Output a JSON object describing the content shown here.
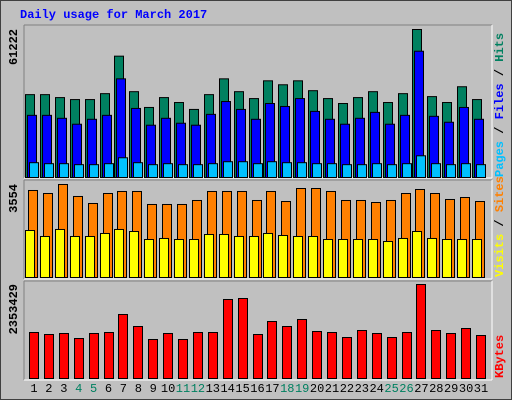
{
  "chart_data": [
    {
      "type": "bar",
      "title": "Daily usage for March 2017",
      "ylim": [
        0,
        61222
      ],
      "yticks": [
        61222
      ],
      "series": [
        {
          "name": "Hits",
          "color": "#008060",
          "values": [
            34281,
            34281,
            33056,
            32240,
            32240,
            34689,
            50196,
            35505,
            28975,
            33056,
            31016,
            28159,
            34281,
            40815,
            35505,
            32648,
            39995,
            38362,
            39995,
            35913,
            32648,
            30608,
            33056,
            35505,
            31016,
            34689,
            61222,
            33464,
            31016,
            37546,
            32240
          ]
        },
        {
          "name": "Files",
          "color": "#0000ff",
          "values": [
            25710,
            25710,
            24486,
            22037,
            24078,
            25710,
            40810,
            28567,
            21629,
            24486,
            22446,
            21629,
            26118,
            31424,
            28159,
            24078,
            30608,
            29383,
            32648,
            27343,
            24078,
            22037,
            24486,
            26935,
            22037,
            25710,
            52237,
            25302,
            22854,
            28975,
            24078
          ]
        },
        {
          "name": "Pages",
          "color": "#00c0ff",
          "values": [
            6122,
            5714,
            5714,
            5306,
            5306,
            5714,
            8162,
            6122,
            5306,
            5714,
            5306,
            5306,
            5714,
            6530,
            6530,
            5714,
            6530,
            6122,
            6122,
            5714,
            5714,
            5306,
            5306,
            5714,
            5306,
            5714,
            8978,
            5714,
            5306,
            5714,
            5306
          ]
        }
      ]
    },
    {
      "type": "bar",
      "ylim": [
        0,
        3554
      ],
      "yticks": [
        3554
      ],
      "series": [
        {
          "name": "Sites",
          "color": "#ff8000",
          "values": [
            3325,
            3210,
            3554,
            3096,
            2828,
            3210,
            3287,
            3287,
            2790,
            2790,
            2790,
            2943,
            3287,
            3287,
            3287,
            2943,
            3287,
            2904,
            3401,
            3401,
            3287,
            2943,
            2943,
            2866,
            2943,
            3210,
            3363,
            3210,
            2981,
            3057,
            2904
          ]
        },
        {
          "name": "Visits",
          "color": "#ffff00",
          "values": [
            1796,
            1567,
            1835,
            1567,
            1567,
            1682,
            1835,
            1758,
            1452,
            1491,
            1452,
            1452,
            1643,
            1643,
            1567,
            1567,
            1682,
            1605,
            1567,
            1567,
            1452,
            1452,
            1452,
            1452,
            1376,
            1491,
            1758,
            1491,
            1452,
            1452,
            1452
          ]
        }
      ]
    },
    {
      "type": "bar",
      "ylim": [
        0,
        2353429
      ],
      "yticks": [
        2353429
      ],
      "categories": [
        "1",
        "2",
        "3",
        "4",
        "5",
        "6",
        "7",
        "8",
        "9",
        "10",
        "11",
        "12",
        "13",
        "14",
        "15",
        "16",
        "17",
        "18",
        "19",
        "20",
        "21",
        "22",
        "23",
        "24",
        "25",
        "26",
        "27",
        "28",
        "29",
        "30",
        "31"
      ],
      "category_colors": [
        "#000000",
        "#000000",
        "#000000",
        "#008060",
        "#008060",
        "#000000",
        "#000000",
        "#000000",
        "#000000",
        "#000000",
        "#008060",
        "#008060",
        "#000000",
        "#000000",
        "#000000",
        "#000000",
        "#000000",
        "#008060",
        "#008060",
        "#000000",
        "#000000",
        "#000000",
        "#000000",
        "#000000",
        "#008060",
        "#008060",
        "#000000",
        "#000000",
        "#000000",
        "#000000",
        "#000000"
      ],
      "series": [
        {
          "name": "KBytes",
          "color": "#ff0000",
          "values": [
            1151656,
            1101584,
            1126620,
            1001440,
            1126620,
            1151656,
            1602304,
            1301872,
            976404,
            1126620,
            976404,
            1151656,
            1151656,
            1977844,
            2002880,
            1101584,
            1427052,
            1301872,
            1477124,
            1176692,
            1151656,
            1026476,
            1201728,
            1126620,
            1026476,
            1151656,
            2353429,
            1201728,
            1126620,
            1251800,
            1076548
          ]
        }
      ]
    }
  ]
}
